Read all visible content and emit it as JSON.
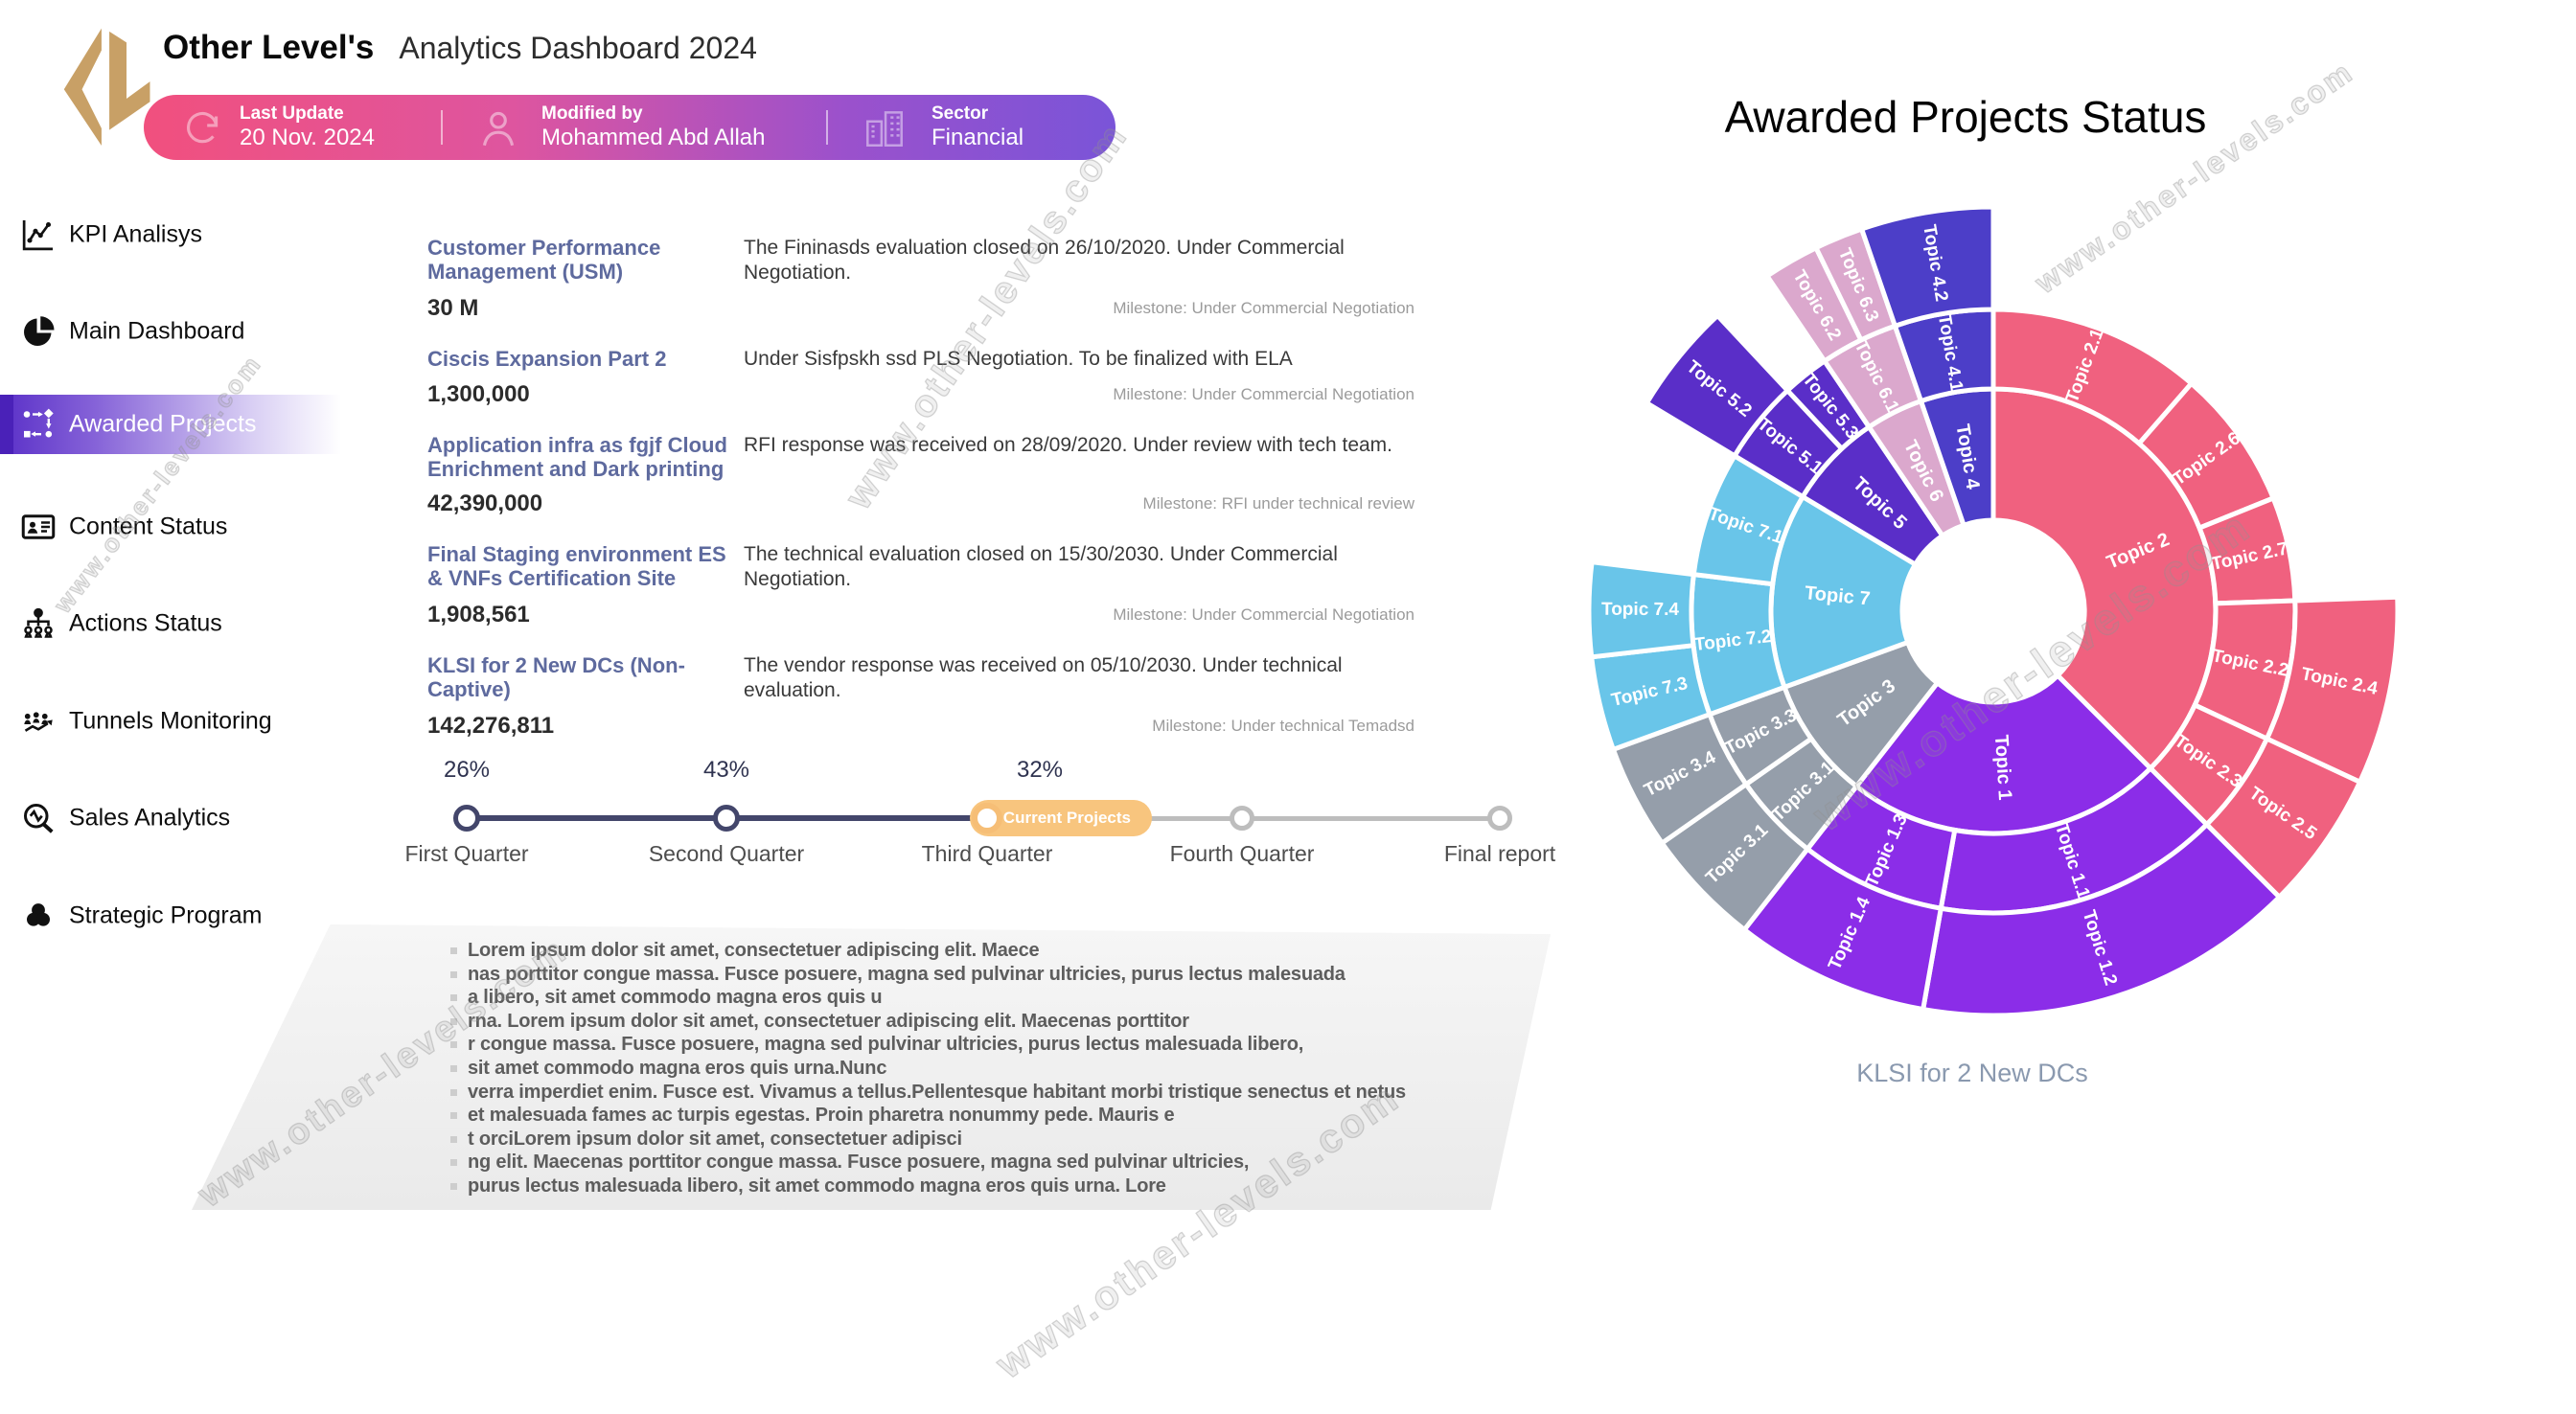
{
  "brand": {
    "name": "Other Level's",
    "subtitle": "Analytics Dashboard 2024"
  },
  "banner": {
    "items": [
      {
        "icon": "refresh-icon",
        "label": "Last Update",
        "value": "20 Nov. 2024"
      },
      {
        "icon": "person-icon",
        "label": "Modified by",
        "value": "Mohammed Abd Allah"
      },
      {
        "icon": "buildings-icon",
        "label": "Sector",
        "value": "Financial"
      }
    ]
  },
  "sidebar": {
    "items": [
      {
        "icon": "line-chart-icon",
        "label": "KPI Analisys",
        "active": false
      },
      {
        "icon": "pie-chart-icon",
        "label": "Main Dashboard",
        "active": false
      },
      {
        "icon": "workflow-icon",
        "label": "Awarded Projects",
        "active": true
      },
      {
        "icon": "id-card-icon",
        "label": "Content Status",
        "active": false
      },
      {
        "icon": "hierarchy-icon",
        "label": "Actions Status",
        "active": false
      },
      {
        "icon": "people-trend-icon",
        "label": "Tunnels Monitoring",
        "active": false
      },
      {
        "icon": "search-pulse-icon",
        "label": "Sales Analytics",
        "active": false
      },
      {
        "icon": "venn-icon",
        "label": "Strategic Program",
        "active": false
      }
    ]
  },
  "projects": [
    {
      "title": "Customer Performance Management (USM)",
      "value": "30 M",
      "description": "The Fininasds evaluation closed on 26/10/2020. Under Commercial Negotiation.",
      "milestone": "Milestone: Under Commercial Negotiation"
    },
    {
      "title": "Ciscis Expansion Part 2",
      "value": "1,300,000",
      "description": "Under Sisfpskh ssd PLS Negotiation. To be finalized with ELA",
      "milestone": "Milestone: Under Commercial Negotiation"
    },
    {
      "title": "Application infra as fgjf Cloud Enrichment and Dark printing",
      "value": "42,390,000",
      "description": "RFI response was received on 28/09/2020. Under review with tech team.",
      "milestone": "Milestone: RFI under technical review"
    },
    {
      "title": "Final Staging environment ES & VNFs Certification Site",
      "value": "1,908,561",
      "description": "The technical evaluation closed on 15/30/2030. Under Commercial Negotiation.",
      "milestone": "Milestone: Under Commercial Negotiation"
    },
    {
      "title": "KLSI for 2 New DCs (Non-Captive)",
      "value": "142,276,811",
      "description": "The vendor response was received on 05/10/2030. Under technical evaluation.",
      "milestone": "Milestone: Under technical Temadsd"
    }
  ],
  "timeline": {
    "stops": [
      {
        "label": "First Quarter",
        "percent": "26%",
        "state": "done"
      },
      {
        "label": "Second Quarter",
        "percent": "43%",
        "state": "done"
      },
      {
        "label": "Third Quarter",
        "percent": "32%",
        "state": "current",
        "badge": "Current Projects"
      },
      {
        "label": "Fourth Quarter",
        "percent": "",
        "state": "upcoming"
      },
      {
        "label": "Final report",
        "percent": "",
        "state": "upcoming"
      }
    ],
    "colors": {
      "done": "#43466B",
      "upcoming": "#BDBDBD",
      "current": "#F6BE76",
      "badge_bg": "#F8C57E"
    }
  },
  "notes": {
    "lines": [
      "Lorem ipsum dolor sit amet, consectetuer adipiscing elit. Maece",
      "nas porttitor congue massa. Fusce posuere, magna sed pulvinar ultricies, purus lectus malesuada",
      "a libero, sit amet commodo magna eros quis u",
      "rna. Lorem ipsum dolor sit amet, consectetuer adipiscing elit. Maecenas porttitor",
      "r congue massa. Fusce posuere, magna sed pulvinar ultricies, purus lectus malesuada libero,",
      "sit amet commodo magna eros quis urna.Nunc",
      "verra imperdiet enim. Fusce est. Vivamus a tellus.Pellentesque habitant morbi tristique senectus et netus",
      "et malesuada fames ac turpis egestas. Proin pharetra nonummy pede. Mauris e",
      "t orciLorem ipsum dolor sit amet, consectetuer adipisci",
      "ng elit. Maecenas porttitor congue massa. Fusce posuere, magna sed pulvinar ultricies,",
      "purus lectus malesuada libero, sit amet commodo magna eros quis urna. Lore"
    ]
  },
  "watermark": {
    "text": "www.other-levels.com"
  },
  "chart_data": {
    "type": "sunburst",
    "title": "Awarded Projects Status",
    "caption": "KLSI for 2 New DCs",
    "angle_units": "degrees clockwise from 12 o'clock",
    "rings": {
      "hole": 95,
      "r1": 232,
      "r2": 315,
      "r3": 422
    },
    "family_colors": {
      "Topic 1": "#8B2DE8",
      "Topic 2": "#F0617F",
      "Topic 3": "#959EAA",
      "Topic 4": "#4C3EC8",
      "Topic 5": "#5A2EC8",
      "Topic 6": "#DBA8CD",
      "Topic 7": "#69C5E9"
    },
    "segments": [
      {
        "label": "Topic 2",
        "ring": 1,
        "start": 0,
        "end": 135,
        "color": "#F0617F"
      },
      {
        "label": "Topic 1",
        "ring": 1,
        "start": 135,
        "end": 218,
        "color": "#8B2DE8"
      },
      {
        "label": "Topic 3",
        "ring": 1,
        "start": 218,
        "end": 250,
        "color": "#959EAA"
      },
      {
        "label": "Topic 7",
        "ring": 1,
        "start": 250,
        "end": 301,
        "color": "#69C5E9"
      },
      {
        "label": "Topic 5",
        "ring": 1,
        "start": 301,
        "end": 326,
        "color": "#5A2EC8"
      },
      {
        "label": "Topic 6",
        "ring": 1,
        "start": 326,
        "end": 341,
        "color": "#DBA8CD"
      },
      {
        "label": "Topic 4",
        "ring": 1,
        "start": 341,
        "end": 360,
        "color": "#4C3EC8"
      },
      {
        "label": "Topic 2.1",
        "ring": 2,
        "start": 0,
        "end": 41,
        "color": "#F0617F"
      },
      {
        "label": "Topic 2.6",
        "ring": 2,
        "start": 41,
        "end": 68,
        "color": "#F0617F"
      },
      {
        "label": "Topic 2.7",
        "ring": 2,
        "start": 68,
        "end": 88,
        "color": "#F0617F"
      },
      {
        "label": "Topic 2.2",
        "ring": 2,
        "start": 88,
        "end": 115,
        "color": "#F0617F"
      },
      {
        "label": "Topic 2.3",
        "ring": 2,
        "start": 115,
        "end": 135,
        "color": "#F0617F"
      },
      {
        "label": "Topic 1.1",
        "ring": 2,
        "start": 135,
        "end": 190,
        "color": "#8B2DE8"
      },
      {
        "label": "Topic 1.3",
        "ring": 2,
        "start": 190,
        "end": 218,
        "color": "#8B2DE8"
      },
      {
        "label": "Topic 3.1",
        "ring": 2,
        "start": 218,
        "end": 235,
        "color": "#959EAA"
      },
      {
        "label": "Topic 3.3",
        "ring": 2,
        "start": 235,
        "end": 250,
        "color": "#959EAA"
      },
      {
        "label": "Topic 7.2",
        "ring": 2,
        "start": 250,
        "end": 277,
        "color": "#69C5E9"
      },
      {
        "label": "Topic 7.1",
        "ring": 2,
        "start": 277,
        "end": 301,
        "color": "#69C5E9"
      },
      {
        "label": "Topic 5.1",
        "ring": 2,
        "start": 301,
        "end": 317,
        "color": "#5A2EC8"
      },
      {
        "label": "Topic 5.3",
        "ring": 2,
        "start": 317,
        "end": 326,
        "color": "#5A2EC8"
      },
      {
        "label": "Topic 6.1",
        "ring": 2,
        "start": 326,
        "end": 341,
        "color": "#DBA8CD"
      },
      {
        "label": "Topic 4.1",
        "ring": 2,
        "start": 341,
        "end": 360,
        "color": "#4C3EC8"
      },
      {
        "label": "Topic 2.4",
        "ring": 3,
        "start": 88,
        "end": 115,
        "color": "#F0617F"
      },
      {
        "label": "Topic 2.5",
        "ring": 3,
        "start": 115,
        "end": 135,
        "color": "#F0617F"
      },
      {
        "label": "Topic 1.2",
        "ring": 3,
        "start": 135,
        "end": 190,
        "color": "#8B2DE8"
      },
      {
        "label": "Topic 1.4",
        "ring": 3,
        "start": 190,
        "end": 218,
        "color": "#8B2DE8"
      },
      {
        "label": "Topic 3.1",
        "ring": 3,
        "start": 218,
        "end": 235,
        "color": "#959EAA"
      },
      {
        "label": "Topic 3.4",
        "ring": 3,
        "start": 235,
        "end": 250,
        "color": "#959EAA"
      },
      {
        "label": "Topic 7.3",
        "ring": 3,
        "start": 250,
        "end": 263.5,
        "color": "#69C5E9"
      },
      {
        "label": "Topic 7.4",
        "ring": 3,
        "start": 263.5,
        "end": 277,
        "color": "#69C5E9"
      },
      {
        "label": "Topic 5.2",
        "ring": 3,
        "start": 301,
        "end": 317,
        "color": "#5A2EC8"
      },
      {
        "label": "Topic 6.2",
        "ring": 3,
        "start": 326,
        "end": 334,
        "color": "#DBA8CD"
      },
      {
        "label": "Topic 6.3",
        "ring": 3,
        "start": 334,
        "end": 341,
        "color": "#DBA8CD"
      },
      {
        "label": "Topic 4.2",
        "ring": 3,
        "start": 341,
        "end": 360,
        "color": "#4C3EC8"
      }
    ]
  }
}
